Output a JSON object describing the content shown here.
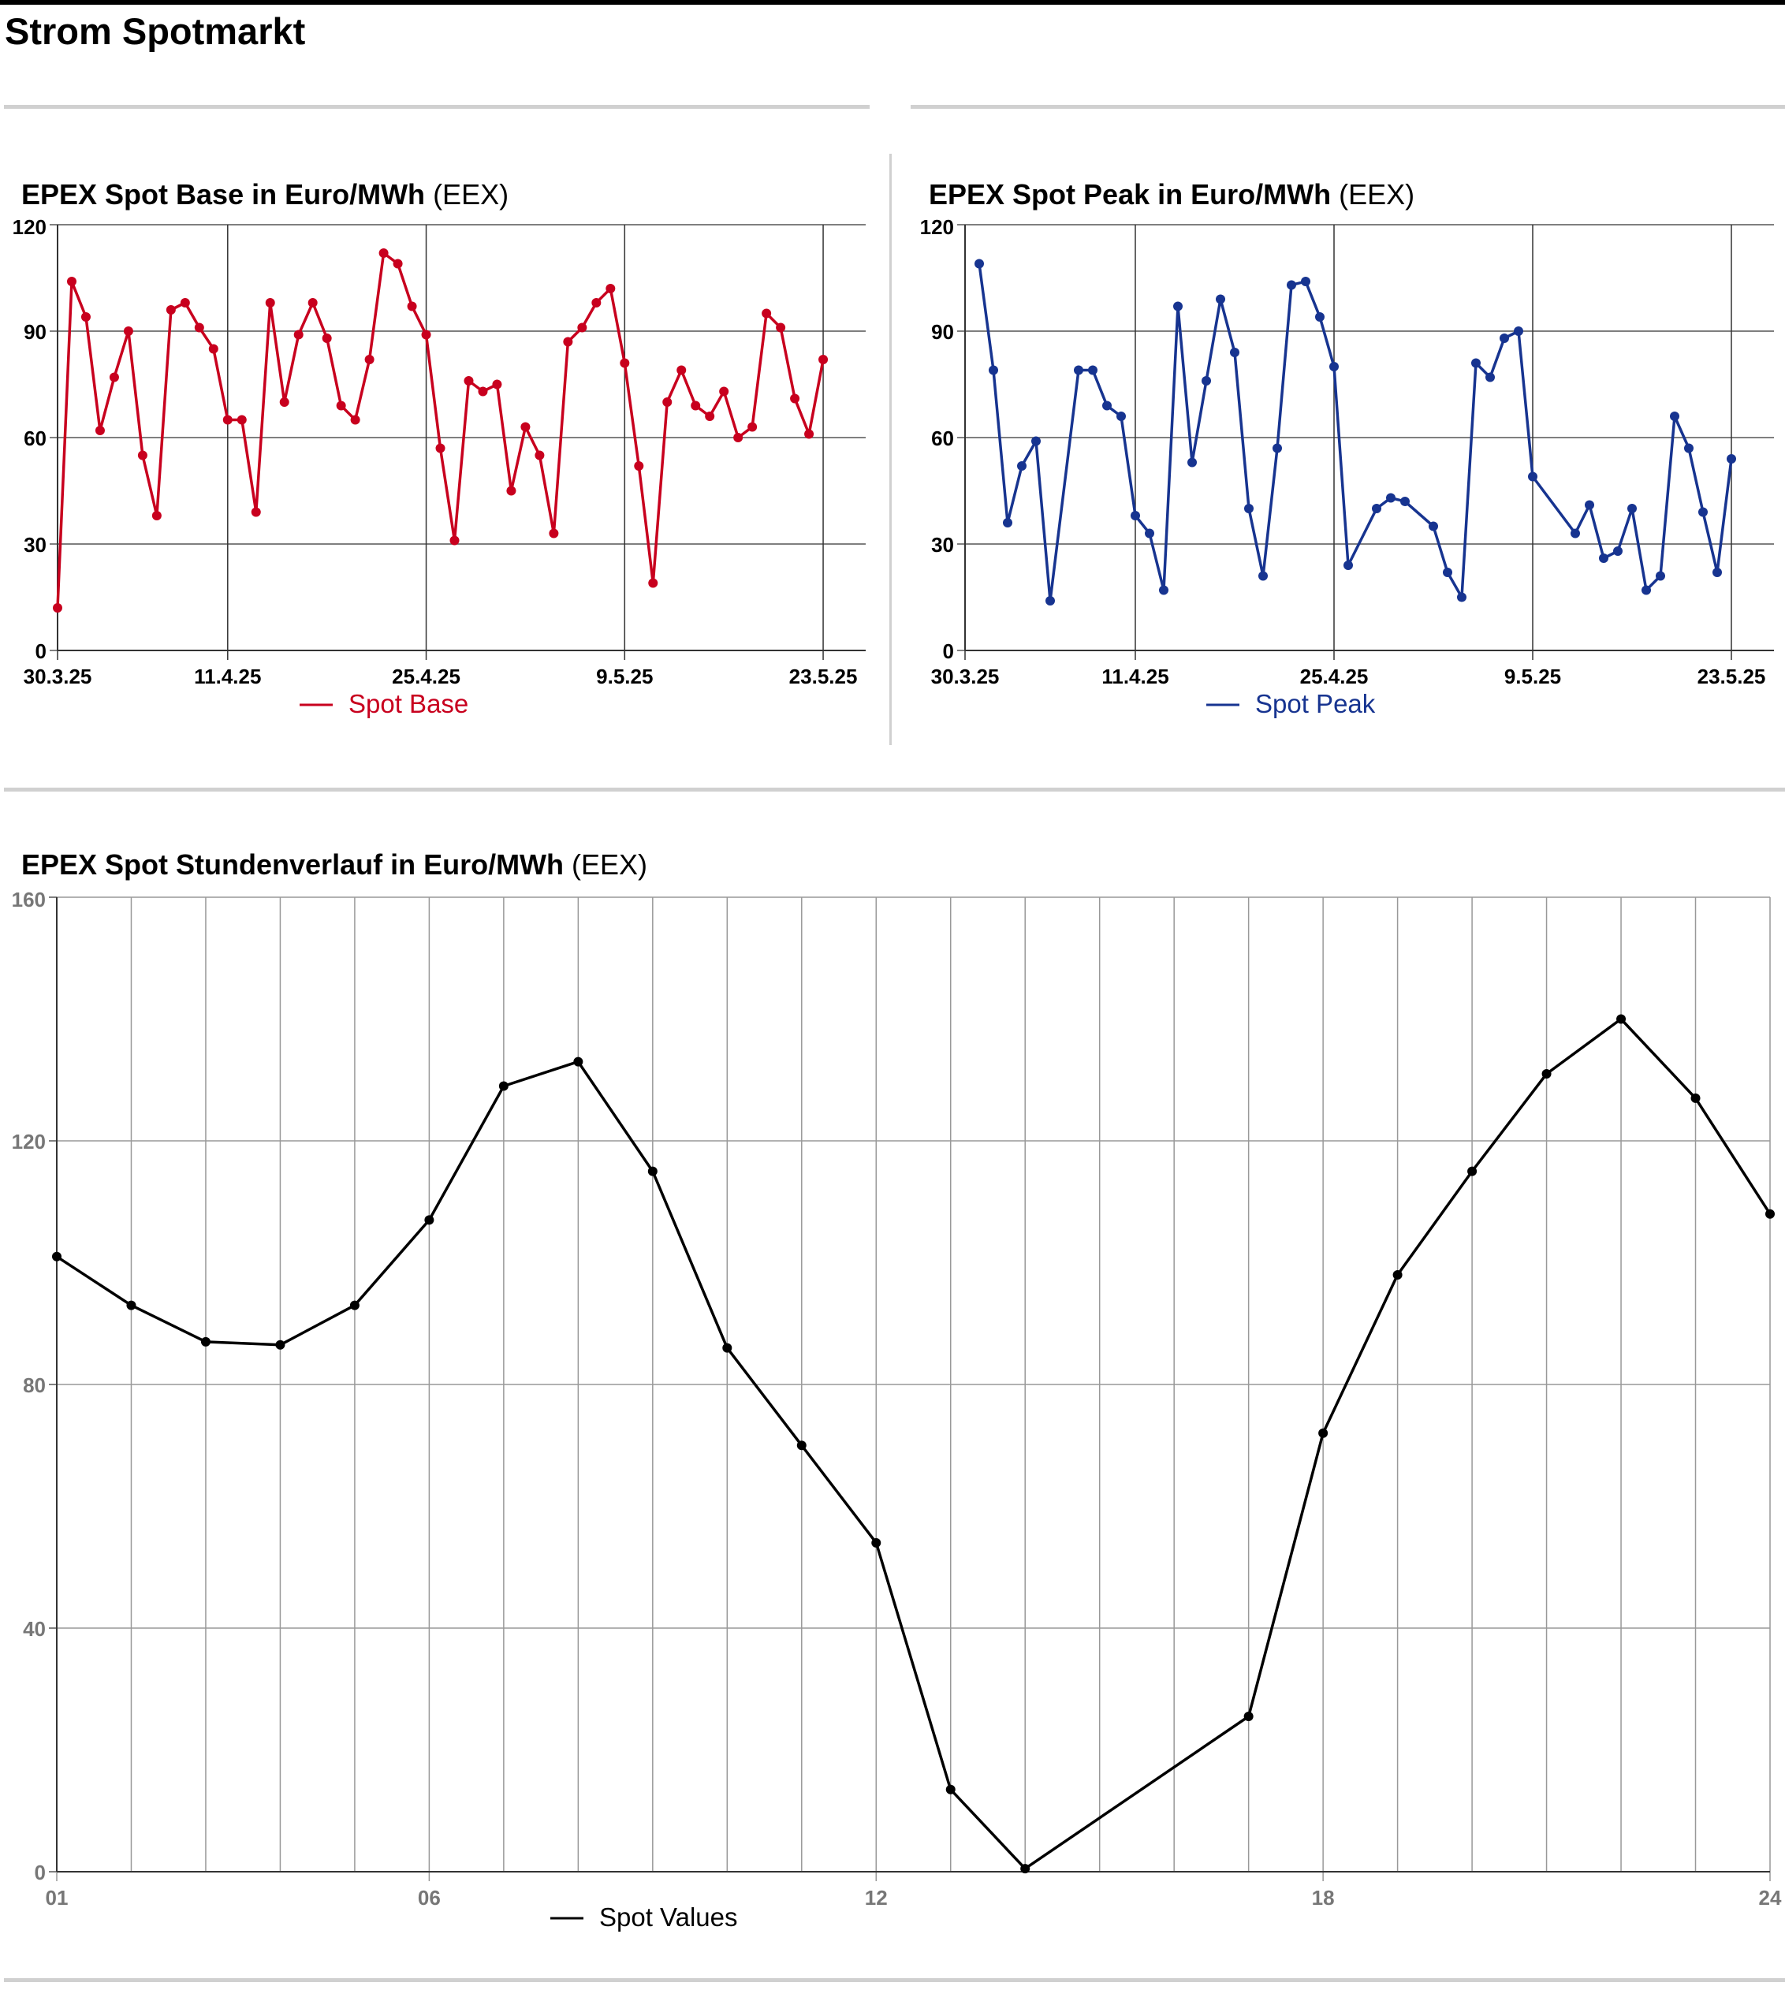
{
  "page_title": "Strom Spotmarkt",
  "colors": {
    "base": "#c8001e",
    "peak": "#173490",
    "hourly": "#000000",
    "grid": "#555555",
    "divider": "#d0d0d0"
  },
  "chart_data": [
    {
      "id": "base",
      "type": "line",
      "title": "EPEX Spot Base in Euro/MWh",
      "source": "(EEX)",
      "x_start": "30.3.25",
      "x_end": "26.5.25",
      "xtick_labels": [
        "30.3.25",
        "11.4.25",
        "25.4.25",
        "9.5.25",
        "23.5.25"
      ],
      "xtick_dates": [
        "30.3.25",
        "11.4.25",
        "25.4.25",
        "9.5.25",
        "23.5.25"
      ],
      "ylim": [
        0,
        120
      ],
      "ytick_labels": [
        "0",
        "30",
        "60",
        "90",
        "120"
      ],
      "grid": true,
      "legend_position": "bottom-center",
      "series": [
        {
          "name": "Spot Base",
          "points": [
            [
              "30.3.25",
              12
            ],
            [
              "31.3.25",
              104
            ],
            [
              "1.4.25",
              94
            ],
            [
              "2.4.25",
              62
            ],
            [
              "3.4.25",
              77
            ],
            [
              "4.4.25",
              90
            ],
            [
              "5.4.25",
              55
            ],
            [
              "6.4.25",
              38
            ],
            [
              "7.4.25",
              96
            ],
            [
              "8.4.25",
              98
            ],
            [
              "9.4.25",
              91
            ],
            [
              "10.4.25",
              85
            ],
            [
              "11.4.25",
              65
            ],
            [
              "12.4.25",
              65
            ],
            [
              "13.4.25",
              39
            ],
            [
              "14.4.25",
              98
            ],
            [
              "15.4.25",
              70
            ],
            [
              "16.4.25",
              89
            ],
            [
              "17.4.25",
              98
            ],
            [
              "18.4.25",
              88
            ],
            [
              "19.4.25",
              69
            ],
            [
              "20.4.25",
              65
            ],
            [
              "21.4.25",
              82
            ],
            [
              "22.4.25",
              112
            ],
            [
              "23.4.25",
              109
            ],
            [
              "24.4.25",
              97
            ],
            [
              "25.4.25",
              89
            ],
            [
              "26.4.25",
              57
            ],
            [
              "27.4.25",
              31
            ],
            [
              "28.4.25",
              76
            ],
            [
              "29.4.25",
              73
            ],
            [
              "30.4.25",
              75
            ],
            [
              "1.5.25",
              45
            ],
            [
              "2.5.25",
              63
            ],
            [
              "3.5.25",
              55
            ],
            [
              "4.5.25",
              33
            ],
            [
              "5.5.25",
              87
            ],
            [
              "6.5.25",
              91
            ],
            [
              "7.5.25",
              98
            ],
            [
              "8.5.25",
              102
            ],
            [
              "9.5.25",
              81
            ],
            [
              "10.5.25",
              52
            ],
            [
              "11.5.25",
              19
            ],
            [
              "12.5.25",
              70
            ],
            [
              "13.5.25",
              79
            ],
            [
              "14.5.25",
              69
            ],
            [
              "15.5.25",
              66
            ],
            [
              "16.5.25",
              73
            ],
            [
              "17.5.25",
              60
            ],
            [
              "18.5.25",
              63
            ],
            [
              "19.5.25",
              95
            ],
            [
              "20.5.25",
              91
            ],
            [
              "21.5.25",
              71
            ],
            [
              "22.5.25",
              61
            ],
            [
              "23.5.25",
              82
            ]
          ]
        }
      ]
    },
    {
      "id": "peak",
      "type": "line",
      "title": "EPEX Spot Peak in Euro/MWh",
      "source": "(EEX)",
      "x_start": "30.3.25",
      "x_end": "26.5.25",
      "xtick_labels": [
        "30.3.25",
        "11.4.25",
        "25.4.25",
        "9.5.25",
        "23.5.25"
      ],
      "xtick_dates": [
        "30.3.25",
        "11.4.25",
        "25.4.25",
        "9.5.25",
        "23.5.25"
      ],
      "ylim": [
        0,
        120
      ],
      "ytick_labels": [
        "0",
        "30",
        "60",
        "90",
        "120"
      ],
      "grid": true,
      "legend_position": "bottom-center",
      "series": [
        {
          "name": "Spot Peak",
          "points": [
            [
              "31.3.25",
              109
            ],
            [
              "1.4.25",
              79
            ],
            [
              "2.4.25",
              36
            ],
            [
              "3.4.25",
              52
            ],
            [
              "4.4.25",
              59
            ],
            [
              "5.4.25",
              14
            ],
            [
              "7.4.25",
              79
            ],
            [
              "8.4.25",
              79
            ],
            [
              "9.4.25",
              69
            ],
            [
              "10.4.25",
              66
            ],
            [
              "11.4.25",
              38
            ],
            [
              "12.4.25",
              33
            ],
            [
              "13.4.25",
              17
            ],
            [
              "14.4.25",
              97
            ],
            [
              "15.4.25",
              53
            ],
            [
              "16.4.25",
              76
            ],
            [
              "17.4.25",
              99
            ],
            [
              "18.4.25",
              84
            ],
            [
              "19.4.25",
              40
            ],
            [
              "20.4.25",
              21
            ],
            [
              "21.4.25",
              57
            ],
            [
              "22.4.25",
              103
            ],
            [
              "23.4.25",
              104
            ],
            [
              "24.4.25",
              94
            ],
            [
              "25.4.25",
              80
            ],
            [
              "26.4.25",
              24
            ],
            [
              "28.4.25",
              40
            ],
            [
              "29.4.25",
              43
            ],
            [
              "30.4.25",
              42
            ],
            [
              "2.5.25",
              35
            ],
            [
              "3.5.25",
              22
            ],
            [
              "4.5.25",
              15
            ],
            [
              "5.5.25",
              81
            ],
            [
              "6.5.25",
              77
            ],
            [
              "7.5.25",
              88
            ],
            [
              "8.5.25",
              90
            ],
            [
              "9.5.25",
              49
            ],
            [
              "12.5.25",
              33
            ],
            [
              "13.5.25",
              41
            ],
            [
              "14.5.25",
              26
            ],
            [
              "15.5.25",
              28
            ],
            [
              "16.5.25",
              40
            ],
            [
              "17.5.25",
              17
            ],
            [
              "18.5.25",
              21
            ],
            [
              "19.5.25",
              66
            ],
            [
              "20.5.25",
              57
            ],
            [
              "21.5.25",
              39
            ],
            [
              "22.5.25",
              22
            ],
            [
              "23.5.25",
              54
            ]
          ]
        }
      ]
    },
    {
      "id": "hourly",
      "type": "line",
      "title": "EPEX Spot Stundenverlauf in Euro/MWh",
      "source": "(EEX)",
      "x": [
        "01",
        "02",
        "03",
        "04",
        "05",
        "06",
        "07",
        "08",
        "09",
        "10",
        "11",
        "12",
        "13",
        "14",
        "15",
        "16",
        "17",
        "18",
        "19",
        "20",
        "21",
        "22",
        "23",
        "24"
      ],
      "xtick_labels": [
        "01",
        "06",
        "12",
        "18",
        "24"
      ],
      "ylim": [
        0,
        160
      ],
      "ytick_labels": [
        "0",
        "40",
        "80",
        "120",
        "160"
      ],
      "grid": true,
      "legend_position": "bottom-center",
      "series": [
        {
          "name": "Spot Values",
          "values": [
            101,
            93,
            87,
            86.5,
            93,
            107,
            129,
            133,
            115,
            86,
            70,
            54,
            13.5,
            0.5,
            null,
            null,
            25.5,
            72,
            98,
            115,
            131,
            140,
            127,
            108
          ]
        }
      ]
    }
  ]
}
